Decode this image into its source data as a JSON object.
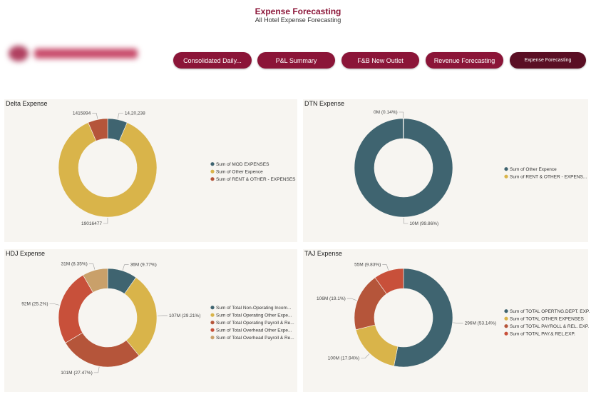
{
  "header": {
    "title": "Expense Forecasting",
    "subtitle": "All Hotel Expense Forecasting"
  },
  "nav": [
    {
      "label": "Consolidated Daily..."
    },
    {
      "label": "P&L Summary"
    },
    {
      "label": "F&B New Outlet"
    },
    {
      "label": "Revenue Forecasting"
    },
    {
      "label": "Expense Forecasting",
      "active": true
    }
  ],
  "colors": {
    "brand": "#8b1538",
    "teal": "#3f6470",
    "gold": "#d9b44a",
    "rust": "#b5553a",
    "red": "#c8503a",
    "tan": "#c9a06a"
  },
  "chart_data": [
    {
      "type": "donut",
      "title": "Delta Expense",
      "slices": [
        {
          "name": "Sum of MOD EXPENSES",
          "value": 1420238,
          "label": "14,20,238",
          "color": "#3f6470"
        },
        {
          "name": "Sum of Other Expence",
          "value": 19016477,
          "label": "19016477",
          "color": "#d9b44a"
        },
        {
          "name": "Sum of RENT  & OTHER - EXPENSES",
          "value": 1415894,
          "label": "1415894",
          "color": "#b5553a"
        }
      ]
    },
    {
      "type": "donut",
      "title": "DTN Expense",
      "slices": [
        {
          "name": "Sum of Other Expence",
          "value": 99.86,
          "label": "10M (99.86%)",
          "color": "#3f6470"
        },
        {
          "name": "Sum of RENT  & OTHER - EXPENS...",
          "value": 0.14,
          "label": "0M (0.14%)",
          "color": "#d9b44a"
        }
      ]
    },
    {
      "type": "donut",
      "title": "HDJ Expense",
      "slices": [
        {
          "name": "Sum of Total Non-Operating Incom...",
          "value": 9.77,
          "label": "36M (9.77%)",
          "color": "#3f6470"
        },
        {
          "name": "Sum of Total Operating Other Expe...",
          "value": 29.21,
          "label": "107M (29.21%)",
          "color": "#d9b44a"
        },
        {
          "name": "Sum of Total Operating Payroll & Re...",
          "value": 27.47,
          "label": "101M (27.47%)",
          "color": "#b5553a"
        },
        {
          "name": "Sum of Total Overhead Other Expe...",
          "value": 25.2,
          "label": "92M (25.2%)",
          "color": "#c8503a"
        },
        {
          "name": "Sum of Total Overhead Payroll & Re...",
          "value": 8.35,
          "label": "31M (8.35%)",
          "color": "#c9a06a"
        }
      ]
    },
    {
      "type": "donut",
      "title": "TAJ Expense",
      "slices": [
        {
          "name": "Sum of TOTAL OPERTNG.DEPT. EXP.",
          "value": 53.14,
          "label": "296M (53.14%)",
          "color": "#3f6470"
        },
        {
          "name": "Sum of TOTAL OTHER EXPENSES",
          "value": 17.94,
          "label": "100M (17.94%)",
          "color": "#d9b44a"
        },
        {
          "name": "Sum of TOTAL PAYROLL & REL. EXP.",
          "value": 19.1,
          "label": "106M (19.1%)",
          "color": "#b5553a"
        },
        {
          "name": "Sum of TOTAL PAY.& REL.EXP.",
          "value": 9.83,
          "label": "55M (9.83%)",
          "color": "#c8503a"
        }
      ]
    }
  ]
}
